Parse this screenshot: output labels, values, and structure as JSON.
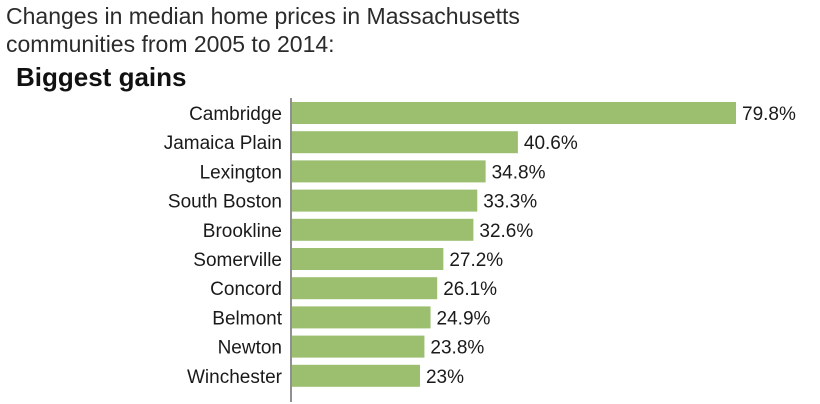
{
  "header": {
    "title_line1": "Changes in median home prices in Massachusetts",
    "title_line2": "communities from 2005 to 2014:",
    "subtitle": "Biggest gains"
  },
  "colors": {
    "bar": "#9bbf6f",
    "axis": "#222222"
  },
  "chart_data": {
    "type": "bar",
    "orientation": "horizontal",
    "title": "Changes in median home prices in Massachusetts communities from 2005 to 2014:",
    "subtitle": "Biggest gains",
    "categories": [
      "Cambridge",
      "Jamaica Plain",
      "Lexington",
      "South Boston",
      "Brookline",
      "Somerville",
      "Concord",
      "Belmont",
      "Newton",
      "Winchester"
    ],
    "values": [
      79.8,
      40.6,
      34.8,
      33.3,
      32.6,
      27.2,
      26.1,
      24.9,
      23.8,
      23
    ],
    "value_labels": [
      "79.8%",
      "40.6%",
      "34.8%",
      "33.3%",
      "32.6%",
      "27.2%",
      "26.1%",
      "24.9%",
      "23.8%",
      "23%"
    ],
    "xlabel": "",
    "ylabel": "",
    "xlim": [
      0,
      79.8
    ],
    "grid": false,
    "legend": "none"
  }
}
